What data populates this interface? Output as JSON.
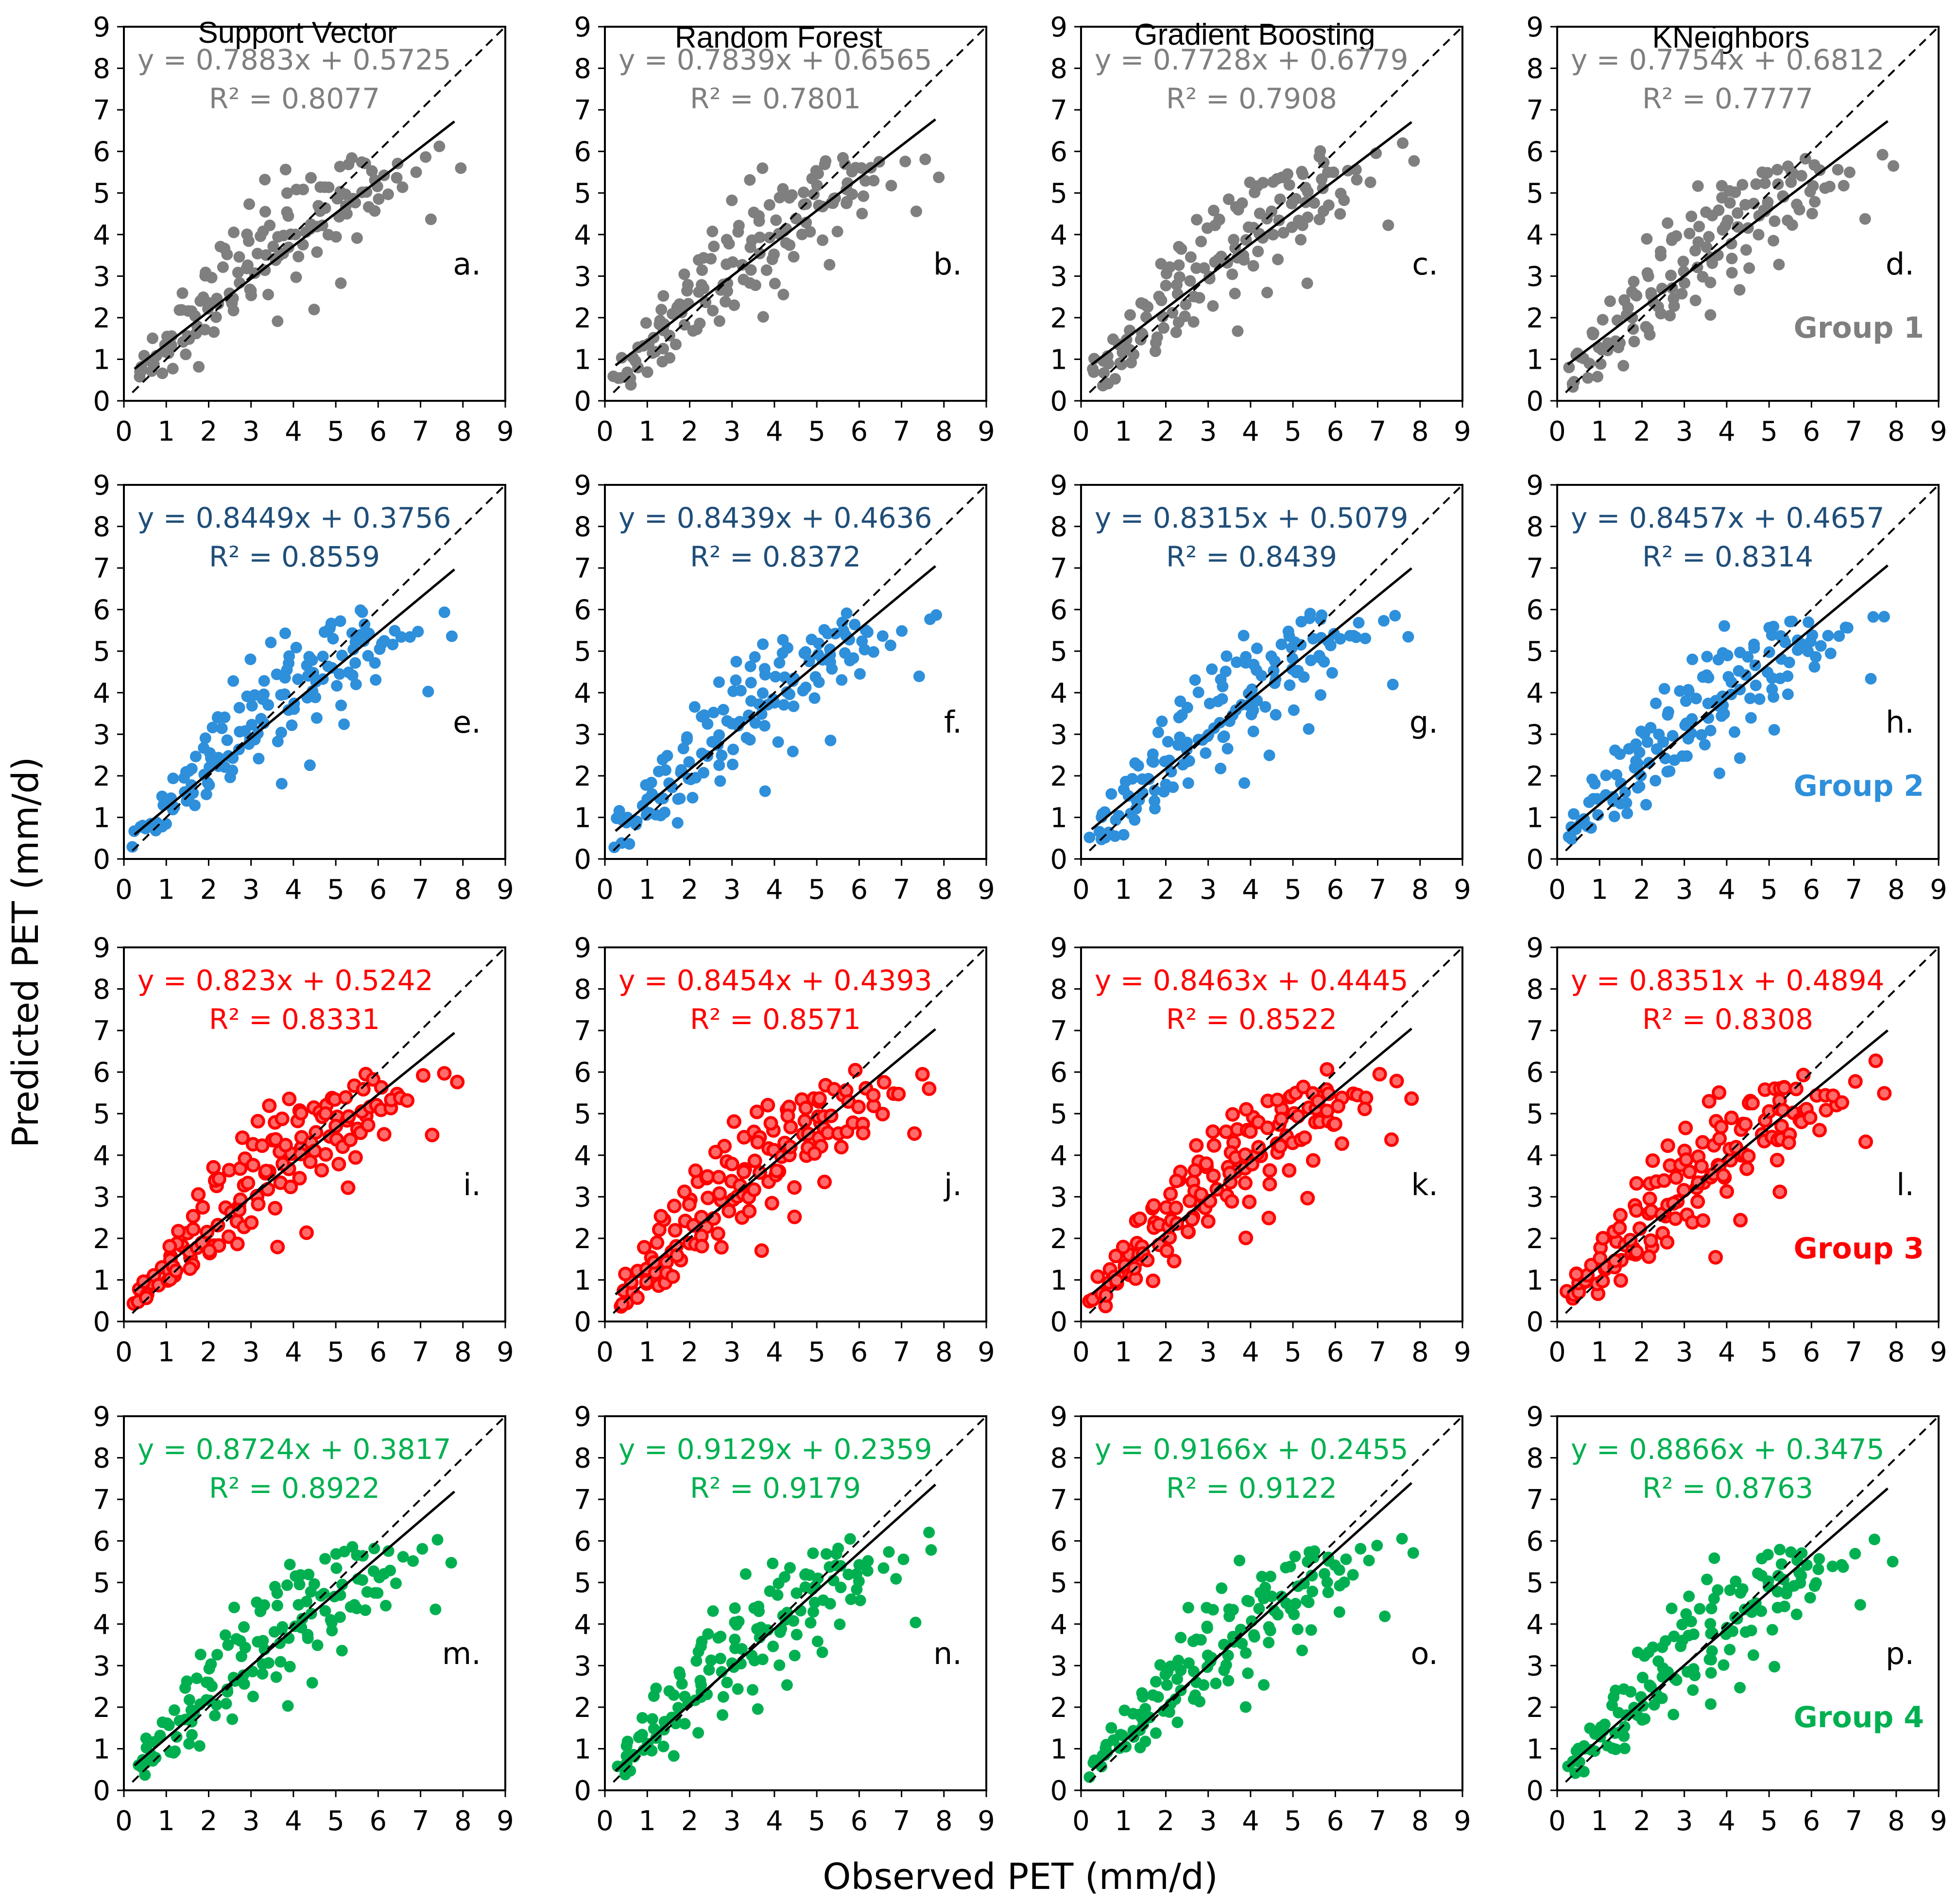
{
  "y_axis_title": "Predicted PET (mm/d)",
  "x_axis_title": "Observed PET (mm/d)",
  "columns": [
    "Support Vector",
    "Random Forest",
    "Gradient Boosting",
    "KNeighbors"
  ],
  "chart_data": {
    "type": "scatter",
    "xlim": [
      0,
      9
    ],
    "ylim": [
      0,
      9
    ],
    "x_ticks": [
      "0",
      "1",
      "2",
      "3",
      "4",
      "5",
      "6",
      "7",
      "8",
      "9"
    ],
    "y_ticks": [
      "0",
      "1",
      "2",
      "3",
      "4",
      "5",
      "6",
      "7",
      "8",
      "9"
    ],
    "grid": false,
    "reference_line": "1:1 dashed",
    "groups": [
      {
        "label": "Group 1",
        "color": "#7f7f7f",
        "marker": "filled",
        "panels": [
          {
            "letter": "a.",
            "equation": "y = 0.7883x + 0.5725",
            "r2": "R² = 0.8077",
            "slope": 0.7883,
            "intercept": 0.5725
          },
          {
            "letter": "b.",
            "equation": "y = 0.7839x + 0.6565",
            "r2": "R² = 0.7801",
            "slope": 0.7839,
            "intercept": 0.6565
          },
          {
            "letter": "c.",
            "equation": "y = 0.7728x + 0.6779",
            "r2": "R² = 0.7908",
            "slope": 0.7728,
            "intercept": 0.6779
          },
          {
            "letter": "d.",
            "equation": "y = 0.7754x + 0.6812",
            "r2": "R² = 0.7777",
            "slope": 0.7754,
            "intercept": 0.6812
          }
        ]
      },
      {
        "label": "Group 2",
        "color": "#2e8fdb",
        "text_color": "#1f4e79",
        "marker": "filled",
        "panels": [
          {
            "letter": "e.",
            "equation": "y = 0.8449x + 0.3756",
            "r2": "R² = 0.8559",
            "slope": 0.8449,
            "intercept": 0.3756
          },
          {
            "letter": "f.",
            "equation": "y = 0.8439x + 0.4636",
            "r2": "R² = 0.8372",
            "slope": 0.8439,
            "intercept": 0.4636
          },
          {
            "letter": "g.",
            "equation": "y = 0.8315x + 0.5079",
            "r2": "R² = 0.8439",
            "slope": 0.8315,
            "intercept": 0.5079
          },
          {
            "letter": "h.",
            "equation": "y = 0.8457x + 0.4657",
            "r2": "R² = 0.8314",
            "slope": 0.8457,
            "intercept": 0.4657
          }
        ]
      },
      {
        "label": "Group 3",
        "color": "#ff0000",
        "marker": "ringed",
        "panels": [
          {
            "letter": "i.",
            "equation": "y = 0.823x + 0.5242",
            "r2": "R² = 0.8331",
            "slope": 0.823,
            "intercept": 0.5242
          },
          {
            "letter": "j.",
            "equation": "y = 0.8454x + 0.4393",
            "r2": "R² = 0.8571",
            "slope": 0.8454,
            "intercept": 0.4393
          },
          {
            "letter": "k.",
            "equation": "y = 0.8463x + 0.4445",
            "r2": "R² = 0.8522",
            "slope": 0.8463,
            "intercept": 0.4445
          },
          {
            "letter": "l.",
            "equation": "y = 0.8351x + 0.4894",
            "r2": "R² = 0.8308",
            "slope": 0.8351,
            "intercept": 0.4894
          }
        ]
      },
      {
        "label": "Group 4",
        "color": "#00b050",
        "marker": "filled",
        "panels": [
          {
            "letter": "m.",
            "equation": "y = 0.8724x + 0.3817",
            "r2": "R² = 0.8922",
            "slope": 0.8724,
            "intercept": 0.3817
          },
          {
            "letter": "n.",
            "equation": "y = 0.9129x + 0.2359",
            "r2": "R² = 0.9179",
            "slope": 0.9129,
            "intercept": 0.2359
          },
          {
            "letter": "o.",
            "equation": "y = 0.9166x + 0.2455",
            "r2": "R² = 0.9122",
            "slope": 0.9166,
            "intercept": 0.2455
          },
          {
            "letter": "p.",
            "equation": "y = 0.8866x + 0.3475",
            "r2": "R² = 0.8763",
            "slope": 0.8866,
            "intercept": 0.3475
          }
        ]
      }
    ],
    "points": [
      [
        0.3,
        0.55
      ],
      [
        0.36,
        0.48
      ],
      [
        0.42,
        0.72
      ],
      [
        0.48,
        0.61
      ],
      [
        0.52,
        0.9
      ],
      [
        0.58,
        0.66
      ],
      [
        0.64,
        1.1
      ],
      [
        0.7,
        0.78
      ],
      [
        0.76,
        0.95
      ],
      [
        0.82,
        1.35
      ],
      [
        0.88,
        0.85
      ],
      [
        0.94,
        1.2
      ],
      [
        1.0,
        1.55
      ],
      [
        1.05,
        0.95
      ],
      [
        1.1,
        1.3
      ],
      [
        1.15,
        1.75
      ],
      [
        1.2,
        1.1
      ],
      [
        1.25,
        1.45
      ],
      [
        1.3,
        2.0
      ],
      [
        1.35,
        1.2
      ],
      [
        1.4,
        1.6
      ],
      [
        1.45,
        2.25
      ],
      [
        1.5,
        1.35
      ],
      [
        1.55,
        1.8
      ],
      [
        1.6,
        2.4
      ],
      [
        1.65,
        1.55
      ],
      [
        1.7,
        2.0
      ],
      [
        1.75,
        2.6
      ],
      [
        1.8,
        1.65
      ],
      [
        1.85,
        2.15
      ],
      [
        1.9,
        2.8
      ],
      [
        1.95,
        1.85
      ],
      [
        2.0,
        2.3
      ],
      [
        2.05,
        3.0
      ],
      [
        2.1,
        1.95
      ],
      [
        2.15,
        2.45
      ],
      [
        2.2,
        3.2
      ],
      [
        2.25,
        2.1
      ],
      [
        2.3,
        2.6
      ],
      [
        2.35,
        3.35
      ],
      [
        2.4,
        2.2
      ],
      [
        2.45,
        2.75
      ],
      [
        2.5,
        3.5
      ],
      [
        2.55,
        2.35
      ],
      [
        2.6,
        2.9
      ],
      [
        2.65,
        3.65
      ],
      [
        2.7,
        2.5
      ],
      [
        2.75,
        3.05
      ],
      [
        2.8,
        3.8
      ],
      [
        2.85,
        2.65
      ],
      [
        2.9,
        3.2
      ],
      [
        2.95,
        3.95
      ],
      [
        3.0,
        2.8
      ],
      [
        3.05,
        3.35
      ],
      [
        3.1,
        4.05
      ],
      [
        3.15,
        2.95
      ],
      [
        3.2,
        3.45
      ],
      [
        3.25,
        4.2
      ],
      [
        3.3,
        3.05
      ],
      [
        3.35,
        3.6
      ],
      [
        3.4,
        4.3
      ],
      [
        3.45,
        3.15
      ],
      [
        3.5,
        3.7
      ],
      [
        3.55,
        4.45
      ],
      [
        3.6,
        3.3
      ],
      [
        3.65,
        3.85
      ],
      [
        3.7,
        4.55
      ],
      [
        3.75,
        3.4
      ],
      [
        3.8,
        3.95
      ],
      [
        3.85,
        4.7
      ],
      [
        3.9,
        3.55
      ],
      [
        3.95,
        4.1
      ],
      [
        4.0,
        4.8
      ],
      [
        4.05,
        3.65
      ],
      [
        4.1,
        4.2
      ],
      [
        4.15,
        4.9
      ],
      [
        4.2,
        3.8
      ],
      [
        4.25,
        4.35
      ],
      [
        4.3,
        5.0
      ],
      [
        4.35,
        3.9
      ],
      [
        4.4,
        4.45
      ],
      [
        4.45,
        5.1
      ],
      [
        4.5,
        4.0
      ],
      [
        4.55,
        4.55
      ],
      [
        4.6,
        5.2
      ],
      [
        4.65,
        4.1
      ],
      [
        4.7,
        4.65
      ],
      [
        4.75,
        5.3
      ],
      [
        4.8,
        4.2
      ],
      [
        4.85,
        4.75
      ],
      [
        4.9,
        5.4
      ],
      [
        4.95,
        4.3
      ],
      [
        5.0,
        4.85
      ],
      [
        5.05,
        5.45
      ],
      [
        5.1,
        4.4
      ],
      [
        5.15,
        4.95
      ],
      [
        5.2,
        5.55
      ],
      [
        5.25,
        4.5
      ],
      [
        5.3,
        5.05
      ],
      [
        5.35,
        5.6
      ],
      [
        5.4,
        4.6
      ],
      [
        5.45,
        5.1
      ],
      [
        5.5,
        5.7
      ],
      [
        5.55,
        4.7
      ],
      [
        5.6,
        5.2
      ],
      [
        5.65,
        5.75
      ],
      [
        5.7,
        4.8
      ],
      [
        5.75,
        5.25
      ],
      [
        5.8,
        5.8
      ],
      [
        5.85,
        4.9
      ],
      [
        5.9,
        5.3
      ],
      [
        6.0,
        5.0
      ],
      [
        6.1,
        5.4
      ],
      [
        6.2,
        5.1
      ],
      [
        6.3,
        5.5
      ],
      [
        6.45,
        5.2
      ],
      [
        6.6,
        5.55
      ],
      [
        6.8,
        5.3
      ],
      [
        7.0,
        5.7
      ],
      [
        7.3,
        4.3
      ],
      [
        7.55,
        6.0
      ],
      [
        7.8,
        5.6
      ],
      [
        0.45,
        1.05
      ],
      [
        0.95,
        1.65
      ],
      [
        1.35,
        2.35
      ],
      [
        1.85,
        3.05
      ],
      [
        2.25,
        3.65
      ],
      [
        2.65,
        4.25
      ],
      [
        3.05,
        4.65
      ],
      [
        3.45,
        5.05
      ],
      [
        3.85,
        5.35
      ],
      [
        1.65,
        1.05
      ],
      [
        2.15,
        1.55
      ],
      [
        2.65,
        1.95
      ],
      [
        3.15,
        2.3
      ],
      [
        3.55,
        2.65
      ],
      [
        4.05,
        3.05
      ],
      [
        4.55,
        3.45
      ],
      [
        5.05,
        3.85
      ],
      [
        5.55,
        4.1
      ],
      [
        6.05,
        4.45
      ],
      [
        3.75,
        1.8
      ],
      [
        4.35,
        2.4
      ],
      [
        5.25,
        3.1
      ]
    ]
  }
}
